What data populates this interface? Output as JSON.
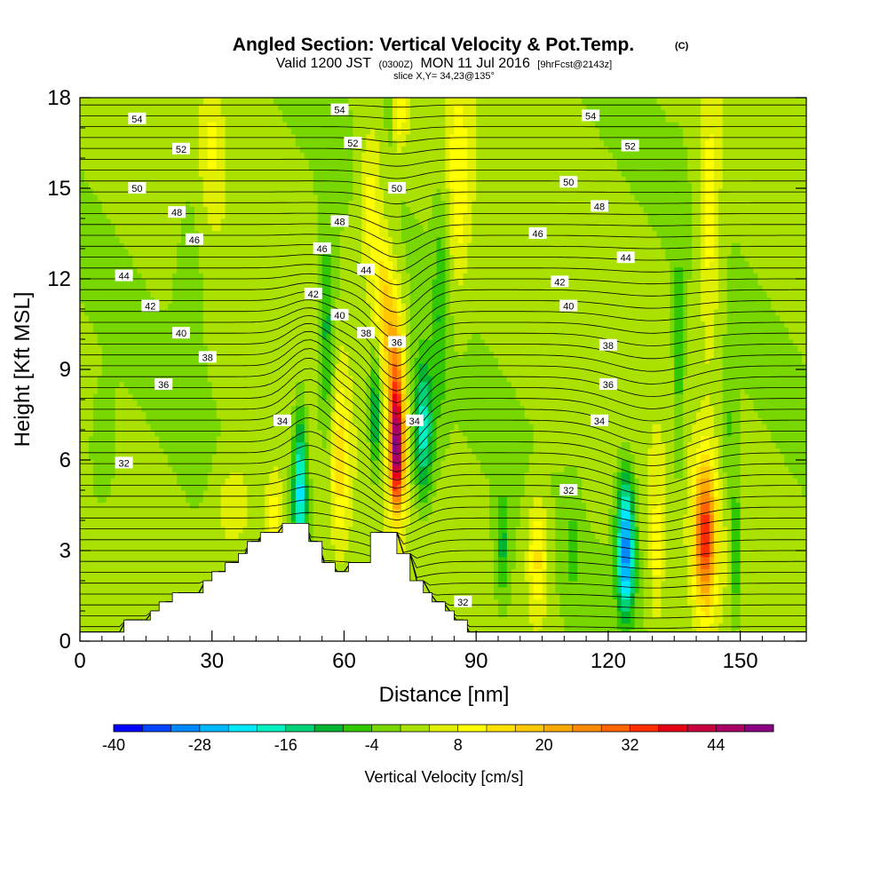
{
  "chart_data": {
    "type": "heatmap",
    "title": "Angled Section: Vertical Velocity & Pot.Temp.",
    "title_suffix": "(C)",
    "subtitle_parts": [
      "Valid 1200 JST",
      "(0300Z)",
      "MON 11 Jul 2016",
      "[9hrFcst@2143z]"
    ],
    "subtitle2": "slice X,Y= 34,23@135°",
    "xlabel": "Distance [nm]",
    "ylabel": "Height [Kft MSL]",
    "xlim": [
      0,
      165
    ],
    "ylim": [
      0,
      18
    ],
    "x_ticks": [
      "0",
      "30",
      "60",
      "90",
      "120",
      "150"
    ],
    "y_ticks": [
      "0",
      "3",
      "6",
      "9",
      "12",
      "15",
      "18"
    ],
    "x_tick_values": [
      0,
      30,
      60,
      90,
      120,
      150
    ],
    "y_tick_values": [
      0,
      3,
      6,
      9,
      12,
      15,
      18
    ],
    "colorbar": {
      "label": "Vertical Velocity [cm/s]",
      "min": -40,
      "max": 50,
      "step": 4,
      "tick_labels": [
        "-40",
        "-28",
        "-16",
        "-4",
        "8",
        "20",
        "32",
        "44"
      ],
      "tick_values": [
        -40,
        -28,
        -16,
        -4,
        8,
        20,
        32,
        44
      ],
      "colors": [
        "#0000ff",
        "#0044ff",
        "#0088ff",
        "#00b8ff",
        "#00e8ff",
        "#00f0c0",
        "#00d278",
        "#00b432",
        "#32c800",
        "#78d700",
        "#aae100",
        "#e1f000",
        "#ffff00",
        "#ffe100",
        "#ffc800",
        "#ffaa00",
        "#ff8c00",
        "#ff6400",
        "#ff2d00",
        "#e60014",
        "#c8003c",
        "#aa0064",
        "#8c0082"
      ]
    },
    "isotherm_labels": [
      {
        "text": "54",
        "x": 13,
        "y": 17.3
      },
      {
        "text": "52",
        "x": 23,
        "y": 16.3
      },
      {
        "text": "50",
        "x": 13,
        "y": 15.0
      },
      {
        "text": "48",
        "x": 22,
        "y": 14.2
      },
      {
        "text": "46",
        "x": 26,
        "y": 13.3
      },
      {
        "text": "44",
        "x": 10,
        "y": 12.1
      },
      {
        "text": "42",
        "x": 16,
        "y": 11.1
      },
      {
        "text": "40",
        "x": 23,
        "y": 10.2
      },
      {
        "text": "38",
        "x": 29,
        "y": 9.4
      },
      {
        "text": "36",
        "x": 19,
        "y": 8.5
      },
      {
        "text": "32",
        "x": 10,
        "y": 5.9
      },
      {
        "text": "54",
        "x": 59,
        "y": 17.6
      },
      {
        "text": "52",
        "x": 62,
        "y": 16.5
      },
      {
        "text": "50",
        "x": 72,
        "y": 15.0
      },
      {
        "text": "48",
        "x": 59,
        "y": 13.9
      },
      {
        "text": "46",
        "x": 55,
        "y": 13.0
      },
      {
        "text": "44",
        "x": 65,
        "y": 12.3
      },
      {
        "text": "42",
        "x": 53,
        "y": 11.5
      },
      {
        "text": "40",
        "x": 59,
        "y": 10.8
      },
      {
        "text": "38",
        "x": 65,
        "y": 10.2
      },
      {
        "text": "36",
        "x": 72,
        "y": 9.9
      },
      {
        "text": "34",
        "x": 46,
        "y": 7.3
      },
      {
        "text": "34",
        "x": 76,
        "y": 7.3
      },
      {
        "text": "32",
        "x": 87,
        "y": 1.3
      },
      {
        "text": "54",
        "x": 116,
        "y": 17.4
      },
      {
        "text": "52",
        "x": 125,
        "y": 16.4
      },
      {
        "text": "50",
        "x": 111,
        "y": 15.2
      },
      {
        "text": "48",
        "x": 118,
        "y": 14.4
      },
      {
        "text": "46",
        "x": 104,
        "y": 13.5
      },
      {
        "text": "44",
        "x": 124,
        "y": 12.7
      },
      {
        "text": "42",
        "x": 109,
        "y": 11.9
      },
      {
        "text": "40",
        "x": 111,
        "y": 11.1
      },
      {
        "text": "38",
        "x": 120,
        "y": 9.8
      },
      {
        "text": "36",
        "x": 120,
        "y": 8.5
      },
      {
        "text": "34",
        "x": 118,
        "y": 7.3
      },
      {
        "text": "32",
        "x": 111,
        "y": 5.0
      }
    ],
    "terrain_height_kft": [
      [
        0,
        0.3
      ],
      [
        10,
        0.3
      ],
      [
        10,
        0.7
      ],
      [
        16,
        0.7
      ],
      [
        16,
        1.0
      ],
      [
        18,
        1.0
      ],
      [
        18,
        1.3
      ],
      [
        21,
        1.3
      ],
      [
        21,
        1.6
      ],
      [
        28,
        1.6
      ],
      [
        28,
        2.0
      ],
      [
        30,
        2.0
      ],
      [
        30,
        2.3
      ],
      [
        33,
        2.3
      ],
      [
        33,
        2.6
      ],
      [
        36,
        2.6
      ],
      [
        36,
        2.9
      ],
      [
        38,
        2.9
      ],
      [
        38,
        3.3
      ],
      [
        41,
        3.3
      ],
      [
        41,
        3.6
      ],
      [
        46,
        3.6
      ],
      [
        46,
        3.9
      ],
      [
        52,
        3.9
      ],
      [
        52,
        3.3
      ],
      [
        55,
        3.3
      ],
      [
        55,
        2.6
      ],
      [
        58,
        2.6
      ],
      [
        58,
        2.3
      ],
      [
        61,
        2.3
      ],
      [
        61,
        2.6
      ],
      [
        66,
        2.6
      ],
      [
        66,
        3.6
      ],
      [
        72,
        3.6
      ],
      [
        72,
        2.9
      ],
      [
        75,
        2.9
      ],
      [
        75,
        2.0
      ],
      [
        78,
        2.0
      ],
      [
        78,
        1.6
      ],
      [
        80,
        1.6
      ],
      [
        80,
        1.3
      ],
      [
        83,
        1.3
      ],
      [
        83,
        1.0
      ],
      [
        85,
        1.0
      ],
      [
        85,
        0.7
      ],
      [
        88,
        0.7
      ],
      [
        88,
        0.3
      ],
      [
        165,
        0.3
      ]
    ]
  }
}
